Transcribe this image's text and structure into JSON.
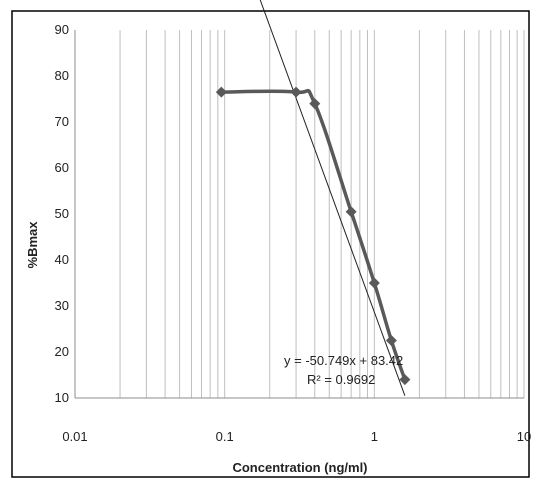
{
  "chart_data": {
    "type": "scatter",
    "title": "",
    "xlabel": "Concentration (ng/ml)",
    "ylabel": "%Bmax",
    "x_scale": "log",
    "xlim": [
      0.01,
      10
    ],
    "ylim": [
      10,
      90
    ],
    "x_ticks": [
      "0.01",
      "0.1",
      "1",
      "10"
    ],
    "y_ticks": [
      "10",
      "20",
      "30",
      "40",
      "50",
      "60",
      "70",
      "80",
      "90"
    ],
    "grid": {
      "x_minor_log": true,
      "y": false
    },
    "series": [
      {
        "style": "smooth-line-with-diamond-markers",
        "color": "#595959",
        "x": [
          0.095,
          0.3,
          0.4,
          0.7,
          1.0,
          1.3,
          1.6
        ],
        "y": [
          76.5,
          76.5,
          74,
          50.5,
          35,
          22.5,
          14
        ]
      }
    ],
    "trendline": {
      "type": "linear",
      "slope": -50.749,
      "intercept": 83.42,
      "color": "#222222",
      "equation_label": "y = -50.749x + 83.42",
      "r2_label": "R² = 0.9692"
    },
    "legend": "none"
  }
}
